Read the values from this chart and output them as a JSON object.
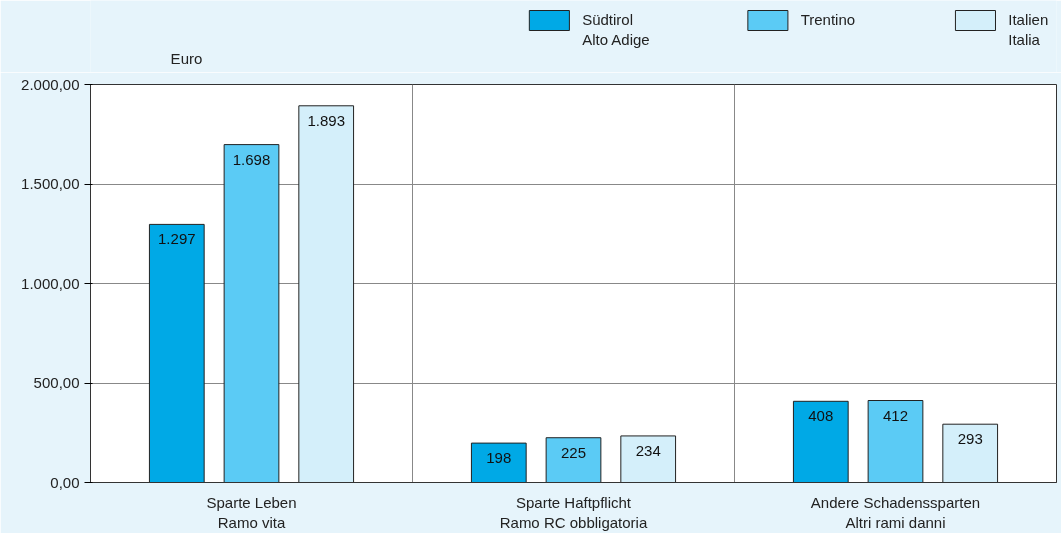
{
  "chart_data": {
    "type": "bar",
    "ylabel": "Euro",
    "categories": [
      "Sparte Leben\nRamo vita",
      "Sparte Haftpflicht\nRamo RC obbligatoria",
      "Andere Schadenssparten\nAltri rami danni"
    ],
    "series": [
      {
        "name": "Südtirol\nAlto Adige",
        "color": "#00a9e6",
        "values": [
          1297,
          198,
          408
        ],
        "value_labels": [
          "1.297",
          "198",
          "408"
        ]
      },
      {
        "name": "Trentino",
        "color": "#5bcbf5",
        "values": [
          1698,
          225,
          412
        ],
        "value_labels": [
          "1.698",
          "225",
          "412"
        ]
      },
      {
        "name": "Italien\nItalia",
        "color": "#d4effa",
        "values": [
          1893,
          234,
          293
        ],
        "value_labels": [
          "1.893",
          "234",
          "293"
        ]
      }
    ],
    "ylim": [
      0,
      2000
    ],
    "yticks": [
      {
        "value": 0,
        "label": "0,00"
      },
      {
        "value": 500,
        "label": "500,00"
      },
      {
        "value": 1000,
        "label": "1.000,00"
      },
      {
        "value": 1500,
        "label": "1.500,00"
      },
      {
        "value": 2000,
        "label": "2.000,00"
      }
    ],
    "grid": true,
    "legend": "top"
  }
}
